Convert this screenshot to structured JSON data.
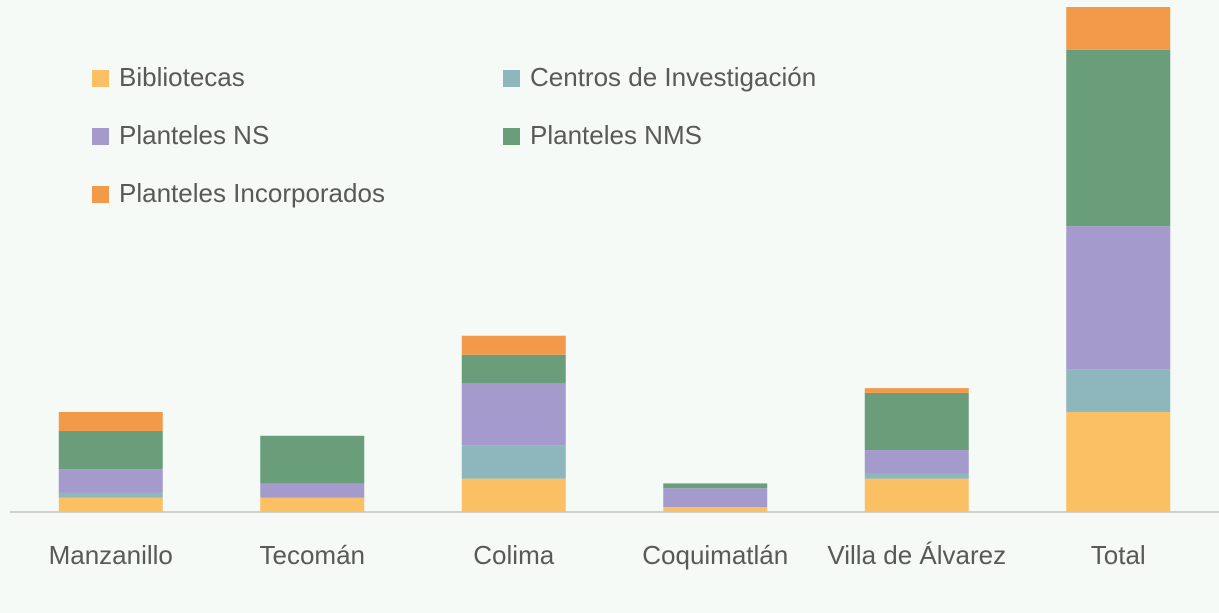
{
  "chart_data": {
    "type": "stacked_bar",
    "categories": [
      "Manzanillo",
      "Tecomán",
      "Colima",
      "Coquimatlán",
      "Villa de Álvarez",
      "Total"
    ],
    "series": [
      {
        "name": "Bibliotecas",
        "color": "#fbc063",
        "values": [
          3,
          3,
          7,
          1,
          7,
          21
        ]
      },
      {
        "name": "Centros de Investigación",
        "color": "#8db6bd",
        "values": [
          1,
          0,
          7,
          0,
          1,
          9
        ]
      },
      {
        "name": "Planteles NS",
        "color": "#a49bcc",
        "values": [
          5,
          3,
          13,
          4,
          5,
          30
        ]
      },
      {
        "name": "Planteles NMS",
        "color": "#6a9e7b",
        "values": [
          8,
          10,
          6,
          1,
          12,
          37
        ]
      },
      {
        "name": "Planteles Incorporados",
        "color": "#f29a4a",
        "values": [
          4,
          0,
          4,
          0,
          1,
          9
        ]
      }
    ],
    "ylim": [
      0,
      106
    ],
    "legend": "top-left"
  }
}
